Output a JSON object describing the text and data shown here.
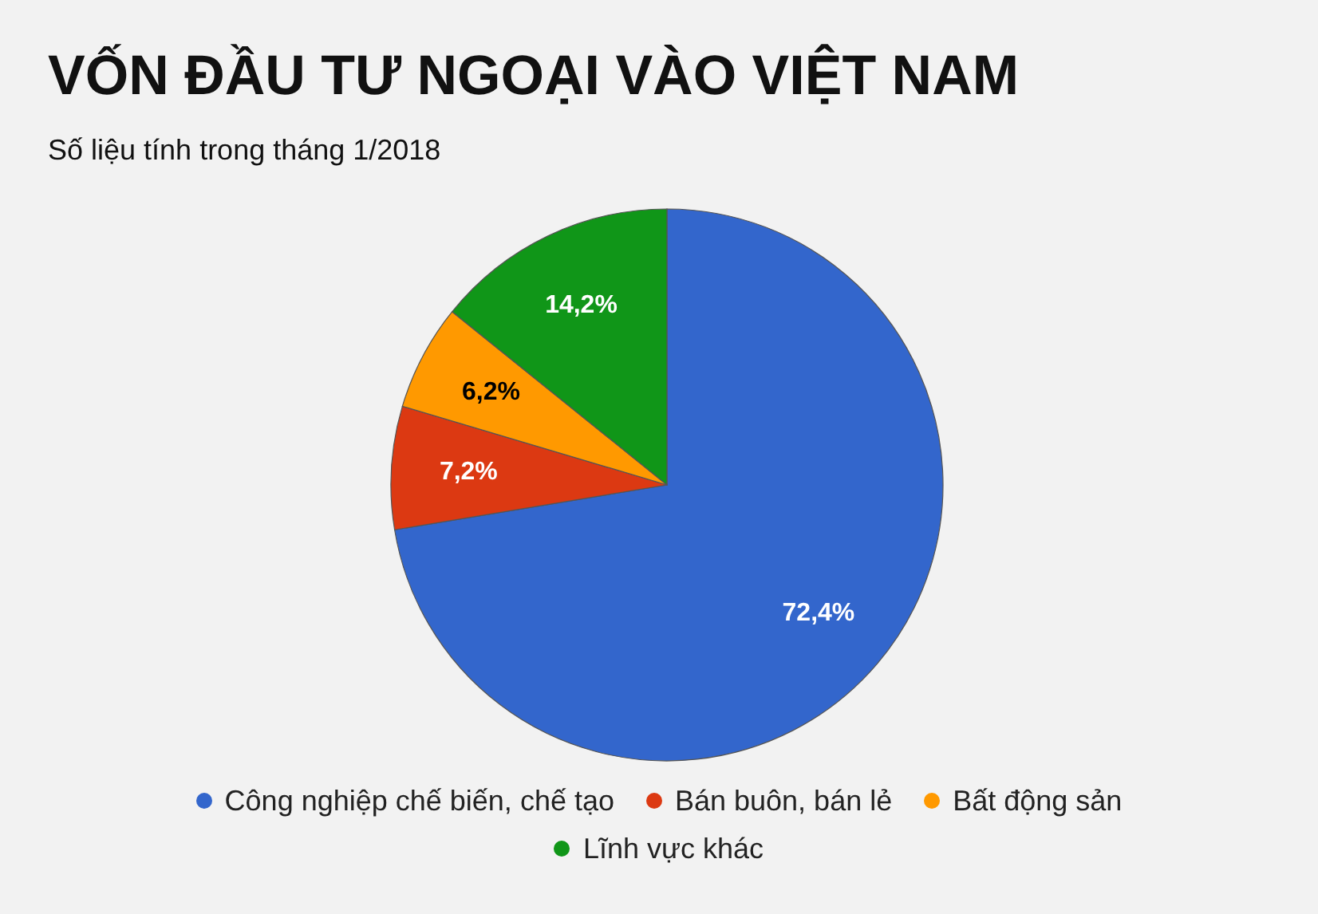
{
  "chart_data": {
    "type": "pie",
    "title": "VỐN ĐẦU TƯ NGOẠI VÀO VIỆT NAM",
    "subtitle": "Số liệu tính trong tháng 1/2018",
    "categories": [
      "Công nghiệp chế biến, chế tạo",
      "Bán buôn, bán lẻ",
      "Bất động sản",
      "Lĩnh vực khác"
    ],
    "values": [
      72.4,
      7.2,
      6.2,
      14.2
    ],
    "colors": [
      "#3366cc",
      "#dc3912",
      "#ff9900",
      "#109618"
    ],
    "value_labels": [
      "72,4%",
      "7,2%",
      "6,2%",
      "14,2%"
    ],
    "legend": "bottom"
  }
}
